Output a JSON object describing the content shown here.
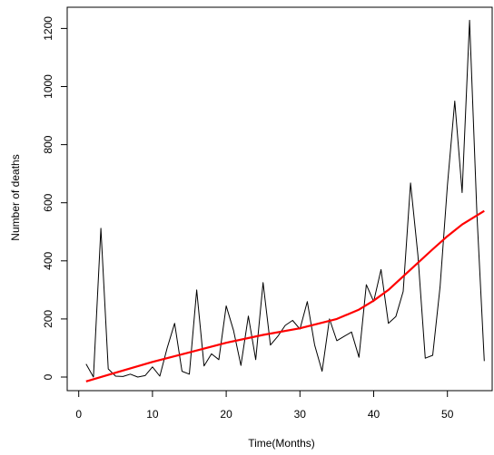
{
  "chart_data": {
    "type": "line",
    "title": "",
    "xlabel": "Time(Months)",
    "ylabel": "Number of deaths",
    "xlim": [
      0,
      56
    ],
    "ylim": [
      -30,
      1240
    ],
    "xticks": [
      0,
      10,
      20,
      30,
      40,
      50
    ],
    "yticks": [
      0,
      200,
      400,
      600,
      800,
      1000,
      1200
    ],
    "grid": false,
    "legend": "none",
    "series": [
      {
        "color": "#000000",
        "style": "raw",
        "x": [
          1,
          2,
          3,
          4,
          5,
          6,
          7,
          8,
          9,
          10,
          11,
          12,
          13,
          14,
          15,
          16,
          17,
          18,
          19,
          20,
          21,
          22,
          23,
          24,
          25,
          26,
          27,
          28,
          29,
          30,
          31,
          32,
          33,
          34,
          35,
          36,
          37,
          38,
          39,
          40,
          41,
          42,
          43,
          44,
          45,
          46,
          47,
          48,
          49,
          50,
          51,
          52,
          53,
          54,
          55
        ],
        "y": [
          45,
          0,
          512,
          28,
          3,
          2,
          10,
          0,
          5,
          35,
          3,
          100,
          185,
          20,
          10,
          300,
          38,
          80,
          60,
          245,
          160,
          40,
          210,
          60,
          325,
          110,
          140,
          178,
          195,
          165,
          260,
          110,
          20,
          200,
          125,
          140,
          155,
          68,
          318,
          260,
          370,
          185,
          208,
          295,
          668,
          420,
          65,
          75,
          310,
          660,
          950,
          635,
          1228,
          560,
          55
        ]
      },
      {
        "color": "#ff0000",
        "style": "smooth",
        "x": [
          1,
          5,
          10,
          15,
          20,
          25,
          30,
          35,
          38,
          40,
          42,
          45,
          48,
          50,
          52,
          55
        ],
        "y": [
          -15,
          15,
          52,
          85,
          118,
          145,
          168,
          200,
          232,
          263,
          300,
          370,
          440,
          485,
          525,
          572
        ]
      }
    ]
  }
}
